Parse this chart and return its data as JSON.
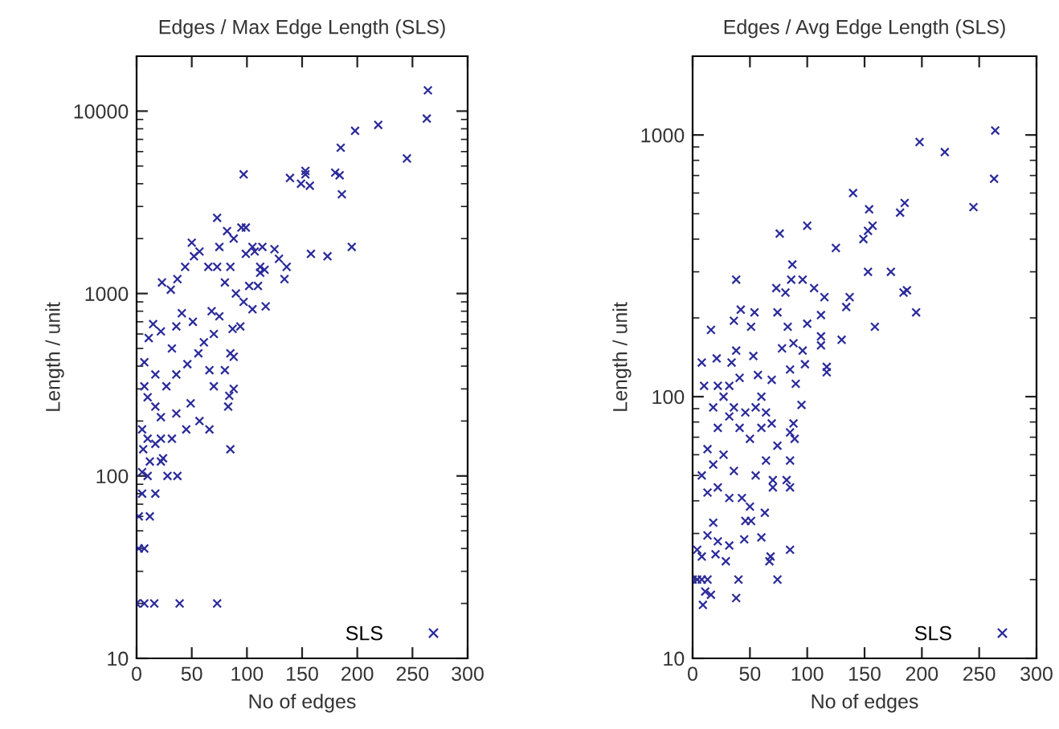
{
  "chart_data": [
    {
      "type": "scatter",
      "title": "Edges / Max Edge Length (SLS)",
      "xlabel": "No of edges",
      "ylabel": "Length / unit",
      "log": "y",
      "xlim": [
        0,
        300
      ],
      "xticks": [
        0,
        50,
        100,
        150,
        200,
        250,
        300
      ],
      "ylim": [
        10,
        20000
      ],
      "yticks": [
        10,
        100,
        1000,
        10000
      ],
      "grid": false,
      "legend": "bottom right",
      "marker": "cross",
      "series": [
        {
          "name": "SLS",
          "color": "#2a2a9a",
          "x": [
            264,
            263,
            198,
            219,
            185,
            245,
            97,
            139,
            153,
            153,
            149,
            157,
            180,
            184,
            186,
            73,
            82,
            88,
            95,
            99,
            75,
            105,
            99,
            107,
            114,
            125,
            129,
            136,
            134,
            158,
            173,
            195,
            50,
            52,
            57,
            37,
            23,
            31,
            44,
            65,
            73,
            85,
            112,
            112,
            116,
            80,
            90,
            97,
            102,
            110,
            105,
            117,
            94,
            87,
            85,
            88,
            80,
            84,
            88,
            85,
            83,
            66,
            57,
            45,
            37,
            28,
            24,
            68,
            75,
            70,
            61,
            51,
            41,
            36,
            32,
            22,
            15,
            11,
            7,
            17,
            27,
            36,
            46,
            56,
            66,
            70,
            49,
            36,
            22,
            17,
            10,
            7,
            5,
            10,
            17,
            22,
            32,
            12,
            22,
            10,
            17,
            5,
            2,
            12,
            2,
            7,
            0,
            7,
            16,
            39,
            73,
            5,
            6
          ],
          "values": [
            13000,
            9100,
            7800,
            8400,
            6300,
            5500,
            4500,
            4300,
            4700,
            4500,
            4000,
            3900,
            4600,
            4450,
            3500,
            2600,
            2200,
            2000,
            2300,
            2300,
            1800,
            1800,
            1650,
            1700,
            1800,
            1750,
            1550,
            1400,
            1200,
            1650,
            1600,
            1800,
            1900,
            1600,
            1700,
            1200,
            1150,
            1050,
            1400,
            1400,
            1400,
            1400,
            1400,
            1300,
            1350,
            1150,
            1000,
            900,
            1100,
            1100,
            820,
            850,
            660,
            640,
            470,
            450,
            380,
            275,
            300,
            140,
            240,
            180,
            200,
            180,
            100,
            100,
            125,
            800,
            750,
            600,
            540,
            700,
            780,
            660,
            500,
            620,
            680,
            570,
            420,
            360,
            310,
            360,
            410,
            470,
            380,
            310,
            250,
            220,
            210,
            240,
            270,
            310,
            180,
            160,
            150,
            160,
            160,
            120,
            120,
            100,
            80,
            80,
            60,
            60,
            40,
            40,
            20,
            20,
            20,
            20,
            20,
            105,
            140
          ]
        }
      ]
    },
    {
      "type": "scatter",
      "title": "Edges / Avg Edge Length (SLS)",
      "xlabel": "No of edges",
      "ylabel": "Length / unit",
      "log": "y",
      "xlim": [
        0,
        300
      ],
      "xticks": [
        0,
        50,
        100,
        150,
        200,
        250,
        300
      ],
      "ylim": [
        10,
        2000
      ],
      "yticks": [
        10,
        100,
        1000
      ],
      "grid": false,
      "legend": "bottom right",
      "marker": "cross",
      "series": [
        {
          "name": "SLS",
          "color": "#2a2a9a",
          "x": [
            264,
            263,
            198,
            220,
            245,
            185,
            181,
            154,
            140,
            157,
            153,
            149,
            125,
            100,
            76,
            153,
            173,
            87,
            86,
            96,
            73,
            81,
            106,
            115,
            134,
            137,
            184,
            187,
            195,
            159,
            130,
            38,
            42,
            54,
            36,
            51,
            16,
            74,
            83,
            100,
            112,
            112,
            112,
            96,
            88,
            78,
            117,
            117,
            98,
            85,
            8,
            10,
            38,
            21,
            34,
            53,
            57,
            69,
            90,
            95,
            88,
            85,
            89,
            85,
            82,
            85,
            70,
            70,
            63,
            60,
            85,
            68,
            67,
            74,
            40,
            38,
            9,
            11,
            16,
            0,
            4,
            8,
            13,
            29,
            20,
            8,
            4,
            13,
            18,
            22,
            32,
            45,
            46,
            51,
            50,
            43,
            32,
            22,
            13,
            8,
            18,
            27,
            36,
            55,
            64,
            74,
            69,
            60,
            50,
            41,
            32,
            22,
            13,
            18,
            27,
            36,
            46,
            55,
            60,
            64,
            32,
            41,
            22
          ],
          "values": [
            1040,
            680,
            940,
            860,
            530,
            550,
            505,
            520,
            600,
            450,
            430,
            400,
            370,
            450,
            420,
            300,
            300,
            320,
            280,
            280,
            260,
            250,
            260,
            240,
            220,
            240,
            250,
            255,
            210,
            185,
            165,
            280,
            215,
            210,
            195,
            185,
            180,
            210,
            185,
            190,
            205,
            170,
            157,
            150,
            160,
            153,
            130,
            124,
            133,
            127,
            135,
            110,
            150,
            140,
            135,
            143,
            121,
            116,
            112,
            93,
            79,
            73,
            69,
            57,
            48,
            45,
            48,
            45,
            36,
            29,
            26,
            24.5,
            23.5,
            20,
            20,
            17,
            16,
            18,
            17.5,
            20,
            20,
            20,
            20,
            23.5,
            25,
            24.5,
            26,
            29.5,
            33,
            28,
            27,
            28.5,
            33.5,
            33.5,
            38,
            41,
            41,
            45,
            43,
            50,
            55,
            60,
            52,
            50,
            57,
            65,
            79,
            76,
            69,
            76,
            84,
            76,
            63,
            91,
            100,
            91,
            87,
            91,
            100,
            87,
            110,
            118,
            110
          ]
        }
      ]
    }
  ]
}
